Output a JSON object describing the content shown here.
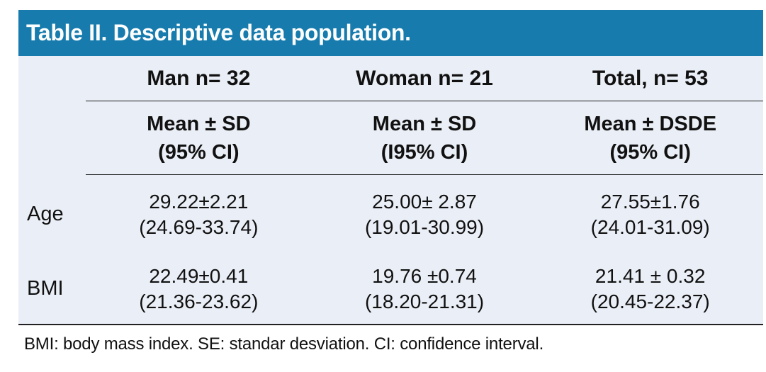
{
  "title": "Table II. Descriptive data population.",
  "columns": [
    {
      "header": "Man n= 32",
      "sub1": "Mean ± SD",
      "sub2": "(95% CI)"
    },
    {
      "header": "Woman n= 21",
      "sub1": "Mean ± SD",
      "sub2": "(I95% CI)"
    },
    {
      "header": "Total, n= 53",
      "sub1": "Mean ± DSDE",
      "sub2": "(95% CI)"
    }
  ],
  "rows": [
    {
      "label": "Age",
      "cells": [
        {
          "mean": "29.22±2.21",
          "ci": "(24.69-33.74)"
        },
        {
          "mean": "25.00± 2.87",
          "ci": "(19.01-30.99)"
        },
        {
          "mean": "27.55±1.76",
          "ci": "(24.01-31.09)"
        }
      ]
    },
    {
      "label": "BMI",
      "cells": [
        {
          "mean": "22.49±0.41",
          "ci": "(21.36-23.62)"
        },
        {
          "mean": "19.76 ±0.74",
          "ci": "(18.20-21.31)"
        },
        {
          "mean": "21.41 ± 0.32",
          "ci": "(20.45-22.37)"
        }
      ]
    }
  ],
  "footnote": "BMI: body mass index. SE: standar desviation. CI: confidence interval.",
  "colors": {
    "header_bg": "#177CAD",
    "body_bg": "#EAEEF6",
    "rule": "#1A1A1A",
    "title_text": "#FFFFFF",
    "body_text": "#111111"
  },
  "chart_data": {
    "type": "table",
    "title": "Table II. Descriptive data population.",
    "column_groups": [
      "Man n= 32",
      "Woman n= 21",
      "Total, n= 53"
    ],
    "column_subheaders": [
      "Mean ± SD (95% CI)",
      "Mean ± SD (I95% CI)",
      "Mean ± DSDE (95% CI)"
    ],
    "rows": [
      {
        "label": "Age",
        "man": {
          "mean": 29.22,
          "sd": 2.21,
          "ci_low": 24.69,
          "ci_high": 33.74
        },
        "woman": {
          "mean": 25.0,
          "sd": 2.87,
          "ci_low": 19.01,
          "ci_high": 30.99
        },
        "total": {
          "mean": 27.55,
          "sd": 1.76,
          "ci_low": 24.01,
          "ci_high": 31.09
        }
      },
      {
        "label": "BMI",
        "man": {
          "mean": 22.49,
          "sd": 0.41,
          "ci_low": 21.36,
          "ci_high": 23.62
        },
        "woman": {
          "mean": 19.76,
          "sd": 0.74,
          "ci_low": 18.2,
          "ci_high": 21.31
        },
        "total": {
          "mean": 21.41,
          "sd": 0.32,
          "ci_low": 20.45,
          "ci_high": 22.37
        }
      }
    ],
    "footnote": "BMI: body mass index. SE: standar desviation. CI: confidence interval."
  }
}
